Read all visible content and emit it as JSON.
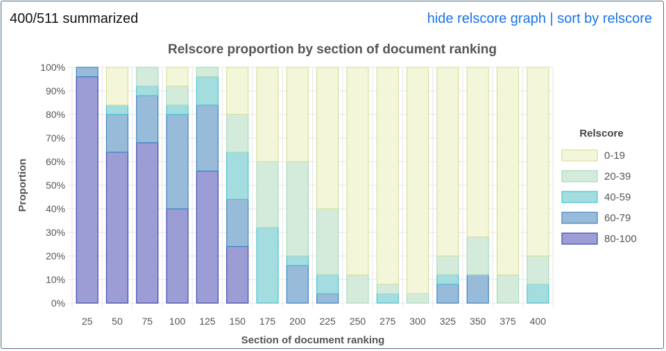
{
  "header": {
    "summary": "400/511 summarized",
    "hide_link": "hide relscore graph",
    "separator": "|",
    "sort_link": "sort by relscore"
  },
  "chart_data": {
    "type": "bar",
    "stacked": true,
    "title": "Relscore proportion by section of document ranking",
    "xlabel": "Section of document ranking",
    "ylabel": "Proportion",
    "ylim": [
      0,
      100
    ],
    "yticks": [
      "0%",
      "10%",
      "20%",
      "30%",
      "40%",
      "50%",
      "60%",
      "70%",
      "80%",
      "90%",
      "100%"
    ],
    "categories": [
      "25",
      "50",
      "75",
      "100",
      "125",
      "150",
      "175",
      "200",
      "225",
      "250",
      "275",
      "300",
      "325",
      "350",
      "375",
      "400"
    ],
    "legend_title": "Relscore",
    "legend_position": "right",
    "series": [
      {
        "name": "80-100",
        "fill": "#9b9dd4",
        "stroke": "#3f4bb0",
        "values": [
          96,
          64,
          68,
          40,
          56,
          24,
          0,
          0,
          0,
          0,
          0,
          0,
          0,
          0,
          0,
          0
        ]
      },
      {
        "name": "60-79",
        "fill": "#97bbd9",
        "stroke": "#3f84c2",
        "values": [
          4,
          16,
          20,
          40,
          28,
          20,
          0,
          16,
          4,
          0,
          0,
          0,
          8,
          12,
          0,
          0
        ]
      },
      {
        "name": "40-59",
        "fill": "#a3dde0",
        "stroke": "#4cc3d1",
        "values": [
          0,
          4,
          4,
          4,
          12,
          20,
          32,
          4,
          8,
          0,
          4,
          0,
          4,
          0,
          0,
          8
        ]
      },
      {
        "name": "20-39",
        "fill": "#d4ebdc",
        "stroke": "#a8dabd",
        "values": [
          0,
          0,
          8,
          8,
          4,
          16,
          28,
          40,
          28,
          12,
          4,
          4,
          8,
          16,
          12,
          12
        ]
      },
      {
        "name": "0-19",
        "fill": "#f3f6d8",
        "stroke": "#d8e19c",
        "values": [
          0,
          16,
          0,
          8,
          0,
          20,
          40,
          40,
          60,
          88,
          92,
          96,
          80,
          72,
          88,
          80
        ]
      }
    ]
  }
}
